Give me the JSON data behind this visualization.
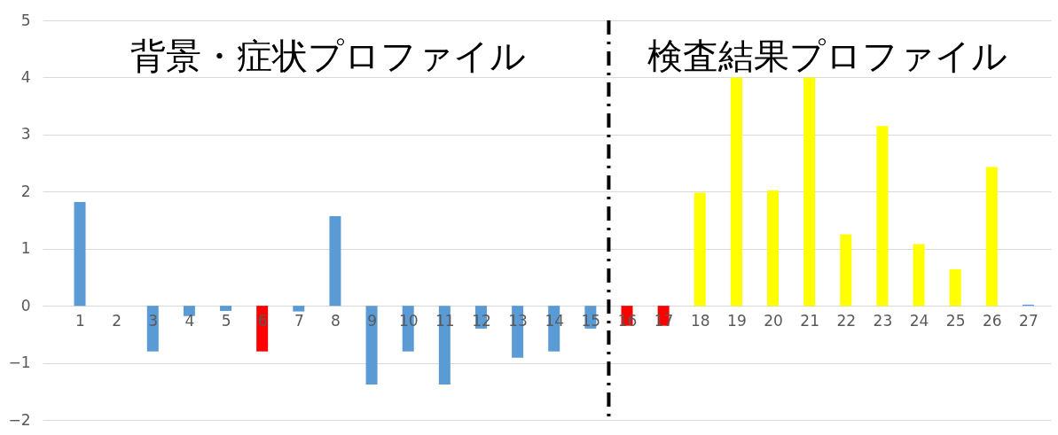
{
  "chart_data": {
    "type": "bar",
    "x": [
      1,
      2,
      3,
      4,
      5,
      6,
      7,
      8,
      9,
      10,
      11,
      12,
      13,
      14,
      15,
      16,
      17,
      18,
      19,
      20,
      21,
      22,
      23,
      24,
      25,
      26,
      27
    ],
    "values": [
      1.82,
      0,
      -0.8,
      -0.18,
      -0.09,
      -0.8,
      -0.1,
      1.57,
      -1.38,
      -0.8,
      -1.38,
      -0.4,
      -0.91,
      -0.8,
      -0.4,
      -0.35,
      -0.35,
      1.98,
      4.0,
      2.02,
      4.0,
      1.25,
      3.15,
      1.08,
      0.64,
      2.43,
      0.02
    ],
    "colors": [
      "#5b9bd5",
      "#5b9bd5",
      "#5b9bd5",
      "#5b9bd5",
      "#5b9bd5",
      "#ff0000",
      "#5b9bd5",
      "#5b9bd5",
      "#5b9bd5",
      "#5b9bd5",
      "#5b9bd5",
      "#5b9bd5",
      "#5b9bd5",
      "#5b9bd5",
      "#5b9bd5",
      "#ff0000",
      "#ff0000",
      "#ffff00",
      "#ffff00",
      "#ffff00",
      "#ffff00",
      "#ffff00",
      "#ffff00",
      "#ffff00",
      "#ffff00",
      "#ffff00",
      "#5b9bd5"
    ],
    "xlim": [
      0.1,
      27.5
    ],
    "xticks": [
      1,
      2,
      3,
      4,
      5,
      6,
      7,
      8,
      9,
      10,
      11,
      12,
      13,
      14,
      15,
      16,
      17,
      18,
      19,
      20,
      21,
      22,
      23,
      24,
      25,
      26,
      27
    ],
    "ylim": [
      -2,
      5
    ],
    "yticks": [
      -2,
      -1,
      0,
      1,
      2,
      3,
      4,
      5
    ],
    "grid": "y",
    "ref_lines": [
      {
        "axis": "x",
        "value": 15.5,
        "color": "#000000",
        "line_style": "dashed"
      }
    ],
    "annotations": [
      "背景・症状プロファイル",
      "検査結果プロファイル"
    ]
  }
}
